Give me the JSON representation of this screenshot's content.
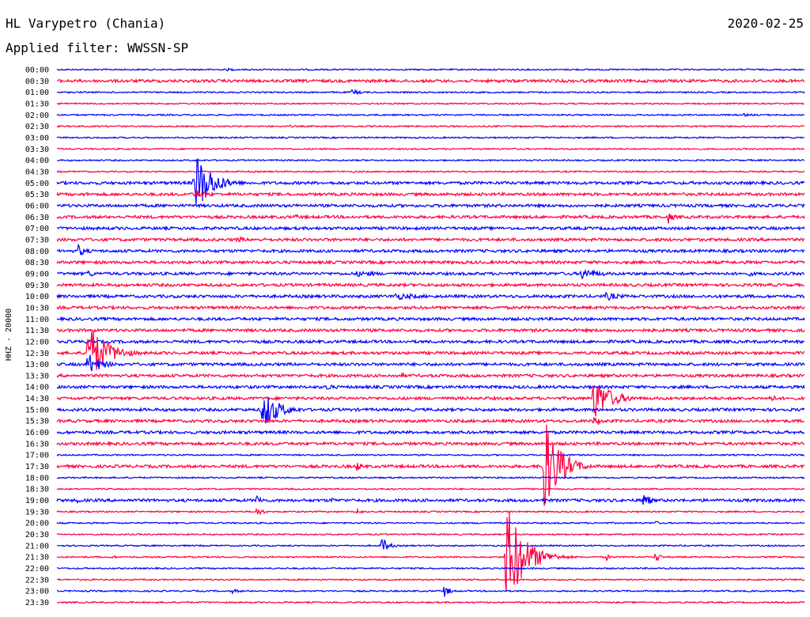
{
  "header": {
    "title": "HL Varypetro (Chania)",
    "filter": "Applied filter: WWSSN-SP",
    "date": "2020-02-25"
  },
  "chart_data": {
    "type": "line",
    "title": "HL Varypetro (Chania)",
    "subtitle": "Applied filter: WWSSN-SP",
    "date": "2020-02-25",
    "ylabel": "HHZ - 20000",
    "colors": [
      "#0000ff",
      "#ff0040"
    ],
    "tick_labels": [
      "00:00",
      "00:30",
      "01:00",
      "01:30",
      "02:00",
      "02:30",
      "03:00",
      "03:30",
      "04:00",
      "04:30",
      "05:00",
      "05:30",
      "06:00",
      "06:30",
      "07:00",
      "07:30",
      "08:00",
      "08:30",
      "09:00",
      "09:30",
      "10:00",
      "10:30",
      "11:00",
      "11:30",
      "12:00",
      "12:30",
      "13:00",
      "13:30",
      "14:00",
      "14:30",
      "15:00",
      "15:30",
      "16:00",
      "16:30",
      "17:00",
      "17:30",
      "18:00",
      "18:30",
      "19:00",
      "19:30",
      "20:00",
      "20:30",
      "21:00",
      "21:30",
      "22:00",
      "22:30",
      "23:00",
      "23:30"
    ],
    "x_minutes": [
      0,
      30
    ],
    "noise": [
      1,
      2,
      1,
      1,
      1,
      1,
      1,
      1,
      1,
      1,
      2,
      2,
      2,
      2,
      2,
      2,
      2,
      2,
      2,
      2,
      2,
      2,
      2,
      2,
      2,
      2,
      2,
      2,
      2,
      2,
      2,
      2,
      2,
      2,
      1,
      2,
      1,
      1,
      2,
      1,
      1,
      1,
      1,
      1,
      1,
      1,
      1,
      1
    ],
    "events": [
      {
        "trace": 0,
        "t": 6.8,
        "amp": 2,
        "dur": 1.2
      },
      {
        "trace": 2,
        "t": 11.8,
        "amp": 4,
        "dur": 1.0
      },
      {
        "trace": 4,
        "t": 27.5,
        "amp": 2,
        "dur": 1.5
      },
      {
        "trace": 5,
        "t": 9.3,
        "amp": 2,
        "dur": 0.6
      },
      {
        "trace": 10,
        "t": 5.5,
        "amp": 45,
        "dur": 1.4
      },
      {
        "trace": 11,
        "t": 5.5,
        "amp": 8,
        "dur": 1.2
      },
      {
        "trace": 11,
        "t": 1.0,
        "amp": 3,
        "dur": 1.2
      },
      {
        "trace": 13,
        "t": 24.5,
        "amp": 9,
        "dur": 0.5
      },
      {
        "trace": 13,
        "t": 9.5,
        "amp": 3,
        "dur": 2.5
      },
      {
        "trace": 15,
        "t": 7.2,
        "amp": 5,
        "dur": 0.8
      },
      {
        "trace": 16,
        "t": 0.8,
        "amp": 10,
        "dur": 0.7
      },
      {
        "trace": 18,
        "t": 1.2,
        "amp": 7,
        "dur": 0.6
      },
      {
        "trace": 18,
        "t": 21.0,
        "amp": 8,
        "dur": 1.8
      },
      {
        "trace": 18,
        "t": 27.8,
        "amp": 6,
        "dur": 0.3
      },
      {
        "trace": 18,
        "t": 12.0,
        "amp": 4,
        "dur": 3.0
      },
      {
        "trace": 20,
        "t": 13.5,
        "amp": 5,
        "dur": 3.0
      },
      {
        "trace": 20,
        "t": 22.0,
        "amp": 6,
        "dur": 1.5
      },
      {
        "trace": 25,
        "t": 1.2,
        "amp": 42,
        "dur": 1.6
      },
      {
        "trace": 26,
        "t": 1.2,
        "amp": 16,
        "dur": 1.2
      },
      {
        "trace": 27,
        "t": 13.8,
        "amp": 4,
        "dur": 0.6
      },
      {
        "trace": 28,
        "t": 10.8,
        "amp": 7,
        "dur": 0.5
      },
      {
        "trace": 29,
        "t": 21.5,
        "amp": 30,
        "dur": 1.5
      },
      {
        "trace": 29,
        "t": 28.5,
        "amp": 7,
        "dur": 0.8
      },
      {
        "trace": 30,
        "t": 8.2,
        "amp": 28,
        "dur": 1.4
      },
      {
        "trace": 31,
        "t": 21.5,
        "amp": 6,
        "dur": 1.0
      },
      {
        "trace": 35,
        "t": 12.0,
        "amp": 8,
        "dur": 0.5
      },
      {
        "trace": 35,
        "t": 19.5,
        "amp": 70,
        "dur": 1.3
      },
      {
        "trace": 38,
        "t": 0.8,
        "amp": 6,
        "dur": 0.3
      },
      {
        "trace": 38,
        "t": 8.0,
        "amp": 8,
        "dur": 0.6
      },
      {
        "trace": 38,
        "t": 11.0,
        "amp": 5,
        "dur": 0.3
      },
      {
        "trace": 38,
        "t": 19.5,
        "amp": 6,
        "dur": 0.4
      },
      {
        "trace": 38,
        "t": 23.5,
        "amp": 16,
        "dur": 0.5
      },
      {
        "trace": 39,
        "t": 8.0,
        "amp": 8,
        "dur": 0.5
      },
      {
        "trace": 39,
        "t": 12.0,
        "amp": 6,
        "dur": 0.4
      },
      {
        "trace": 40,
        "t": 24.0,
        "amp": 3,
        "dur": 0.5
      },
      {
        "trace": 42,
        "t": 13.0,
        "amp": 12,
        "dur": 0.6
      },
      {
        "trace": 43,
        "t": 2.2,
        "amp": 4,
        "dur": 0.3
      },
      {
        "trace": 43,
        "t": 18.0,
        "amp": 75,
        "dur": 1.5
      },
      {
        "trace": 43,
        "t": 22.0,
        "amp": 6,
        "dur": 0.4
      },
      {
        "trace": 43,
        "t": 24.0,
        "amp": 9,
        "dur": 0.4
      },
      {
        "trace": 46,
        "t": 7.0,
        "amp": 3,
        "dur": 1.0
      },
      {
        "trace": 46,
        "t": 15.5,
        "amp": 10,
        "dur": 0.5
      }
    ]
  }
}
